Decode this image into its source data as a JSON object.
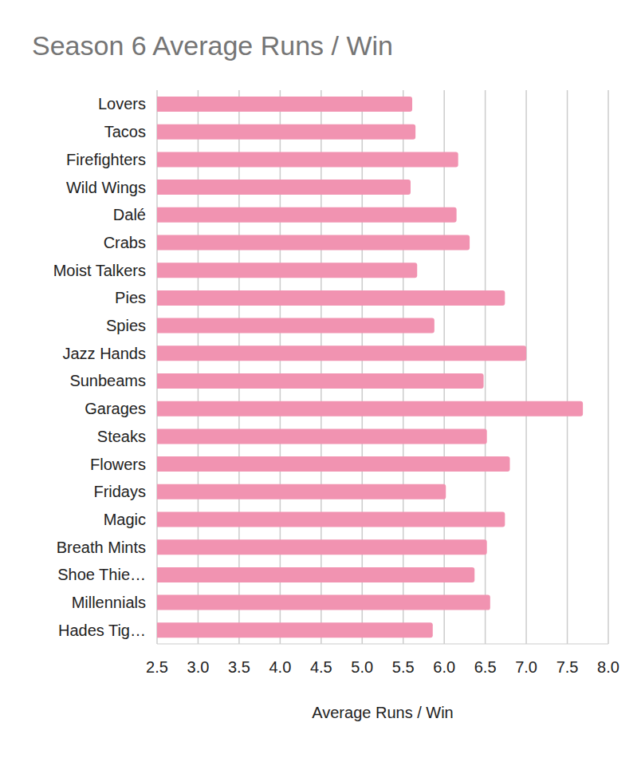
{
  "chart_data": {
    "type": "bar",
    "title": "Season 6 Average Runs / Win",
    "x_label": "Average Runs / Win",
    "orientation": "horizontal",
    "categories": [
      "Lovers",
      "Tacos",
      "Firefighters",
      "Wild Wings",
      "Dalé",
      "Crabs",
      "Moist Talkers",
      "Pies",
      "Spies",
      "Jazz Hands",
      "Sunbeams",
      "Garages",
      "Steaks",
      "Flowers",
      "Fridays",
      "Magic",
      "Breath Mints",
      "Shoe Thie…",
      "Millennials",
      "Hades Tig…"
    ],
    "values": [
      5.61,
      5.65,
      6.17,
      5.59,
      6.15,
      6.31,
      5.67,
      6.74,
      5.88,
      7.0,
      6.48,
      7.69,
      6.52,
      6.8,
      6.02,
      6.74,
      6.52,
      6.37,
      6.56,
      5.86
    ],
    "color": "#f193b1",
    "xlim": [
      2.5,
      8.0
    ],
    "xticks": [
      2.5,
      {
        "value": 3,
        "label": "3.0"
      },
      3.5,
      {
        "value": 4,
        "label": "4.0"
      },
      4.5,
      {
        "value": 5,
        "label": "5.0"
      },
      5.5,
      {
        "value": 6,
        "label": "6.0"
      },
      6.5,
      {
        "value": 7,
        "label": "7.0"
      },
      7.5,
      {
        "value": 8,
        "label": "8.0"
      }
    ],
    "grid": true
  }
}
